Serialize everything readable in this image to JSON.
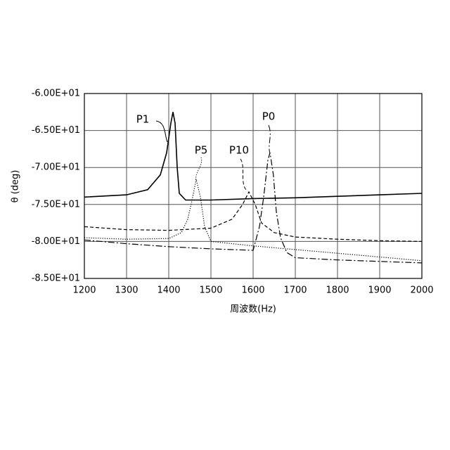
{
  "chart_data": {
    "type": "line",
    "x_label": "周波数(Hz)",
    "y_label": "θ (deg)",
    "xlim": [
      1200,
      2000
    ],
    "xticks": [
      1200,
      1300,
      1400,
      1500,
      1600,
      1700,
      1800,
      1900,
      2000
    ],
    "ylim": [
      -85,
      -60
    ],
    "yticks": [
      {
        "value": -60,
        "label": "-6.00E+01"
      },
      {
        "value": -65,
        "label": "-6.50E+01"
      },
      {
        "value": -70,
        "label": "-7.00E+01"
      },
      {
        "value": -75,
        "label": "-7.50E+01"
      },
      {
        "value": -80,
        "label": "-8.00E+01"
      },
      {
        "value": -85,
        "label": "-8.50E+01"
      }
    ],
    "grid": true,
    "series": [
      {
        "name": "P1",
        "color": "#000000",
        "dash": "solid",
        "x": [
          1200,
          1300,
          1350,
          1380,
          1395,
          1405,
          1410,
          1415,
          1420,
          1425,
          1440,
          1500,
          1600,
          1700,
          1800,
          1900,
          2000
        ],
        "values": [
          -74.0,
          -73.7,
          -73.0,
          -71.0,
          -68.0,
          -64.0,
          -62.5,
          -64.0,
          -70.0,
          -73.5,
          -74.4,
          -74.4,
          -74.2,
          -74.1,
          -73.9,
          -73.7,
          -73.5
        ]
      },
      {
        "name": "P5",
        "color": "#000000",
        "dash": "dotted",
        "x": [
          1200,
          1300,
          1400,
          1430,
          1445,
          1455,
          1465,
          1475,
          1485,
          1500,
          1600,
          1700,
          1800,
          1900,
          2000
        ],
        "values": [
          -79.5,
          -79.7,
          -79.6,
          -78.8,
          -77.0,
          -74.5,
          -71.6,
          -74.0,
          -78.0,
          -80.0,
          -80.6,
          -81.1,
          -81.6,
          -82.1,
          -82.6
        ]
      },
      {
        "name": "P10",
        "color": "#000000",
        "dash": "dashed",
        "x": [
          1200,
          1300,
          1400,
          1500,
          1550,
          1575,
          1590,
          1605,
          1620,
          1650,
          1700,
          1800,
          1900,
          2000
        ],
        "values": [
          -78.0,
          -78.4,
          -78.5,
          -78.2,
          -77.0,
          -75.0,
          -73.3,
          -75.0,
          -77.5,
          -78.8,
          -79.4,
          -79.7,
          -79.9,
          -80.0
        ]
      },
      {
        "name": "P0",
        "color": "#000000",
        "dash": "dashdot",
        "x": [
          1200,
          1300,
          1400,
          1500,
          1600,
          1615,
          1625,
          1635,
          1640,
          1648,
          1655,
          1665,
          1680,
          1700,
          1800,
          1900,
          2000
        ],
        "values": [
          -79.8,
          -80.3,
          -80.7,
          -81.0,
          -81.2,
          -78.0,
          -74.0,
          -69.0,
          -68.0,
          -71.0,
          -76.0,
          -79.5,
          -81.5,
          -82.2,
          -82.5,
          -82.7,
          -82.9
        ]
      }
    ]
  }
}
